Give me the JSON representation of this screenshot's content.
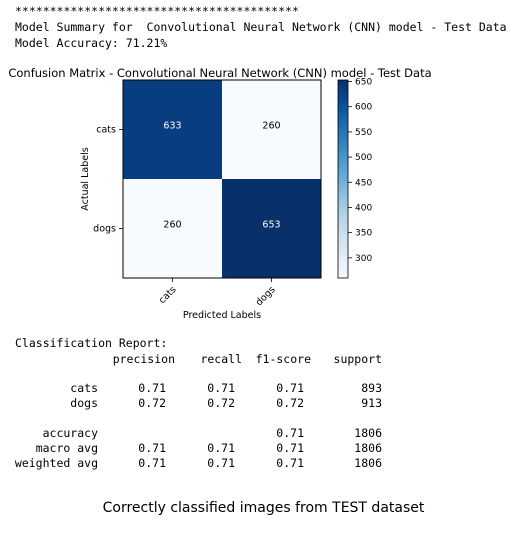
{
  "header": {
    "stars": "*****************************************",
    "summary": "Model Summary for  Convolutional Neural Network (CNN) model - Test Data",
    "accuracy": "Model Accuracy: 71.21%"
  },
  "chart_data": {
    "type": "heatmap",
    "title": "Confusion Matrix - Convolutional Neural Network (CNN) model - Test Data",
    "xlabel": "Predicted Labels",
    "ylabel": "Actual Labels",
    "x_categories": [
      "cats",
      "dogs"
    ],
    "y_categories": [
      "cats",
      "dogs"
    ],
    "values": [
      [
        633,
        260
      ],
      [
        260,
        653
      ]
    ],
    "colormap": "Blues",
    "colorbar": {
      "min": 260,
      "max": 653,
      "ticks": [
        300,
        350,
        400,
        450,
        500,
        550,
        600,
        650
      ]
    },
    "colors": {
      "low": "#f7fbff",
      "high": "#08306b"
    }
  },
  "report": {
    "title": "Classification Report:",
    "headers": [
      "precision",
      "recall",
      "f1-score",
      "support"
    ],
    "rows": [
      {
        "label": "cats",
        "precision": "0.71",
        "recall": "0.71",
        "f1": "0.71",
        "support": "893"
      },
      {
        "label": "dogs",
        "precision": "0.72",
        "recall": "0.72",
        "f1": "0.72",
        "support": "913"
      },
      {
        "label": "accuracy",
        "precision": "",
        "recall": "",
        "f1": "0.71",
        "support": "1806"
      },
      {
        "label": "macro avg",
        "precision": "0.71",
        "recall": "0.71",
        "f1": "0.71",
        "support": "1806"
      },
      {
        "label": "weighted avg",
        "precision": "0.71",
        "recall": "0.71",
        "f1": "0.71",
        "support": "1806"
      }
    ]
  },
  "footer": {
    "text": "Correctly classified images from TEST dataset"
  }
}
